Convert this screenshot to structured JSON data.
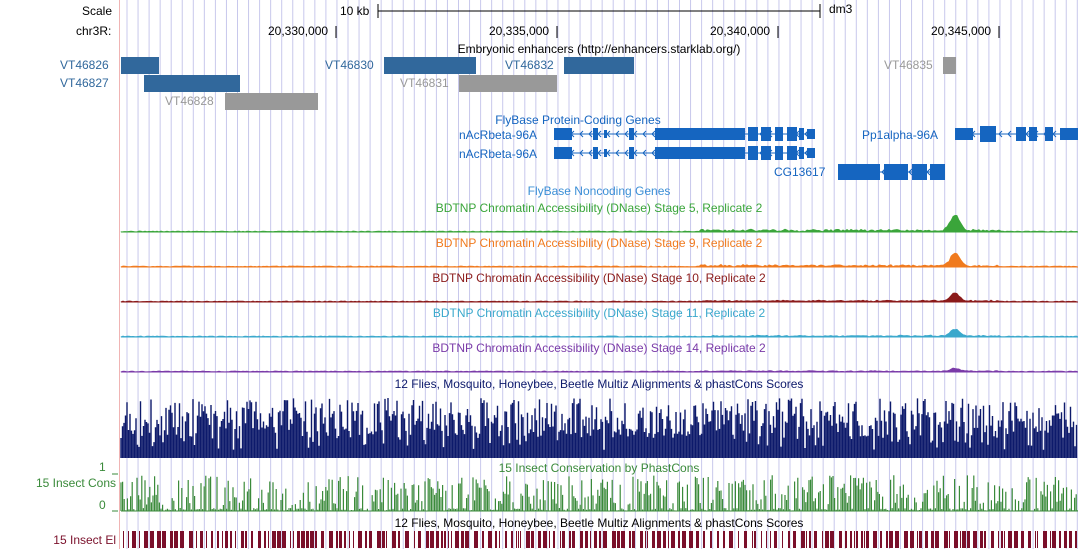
{
  "ruler": {
    "scale_label": "Scale",
    "chrom_label": "chr3R:",
    "scale_bar_text": "10 kb",
    "assembly": "dm3",
    "positions": [
      "20,330,000",
      "20,335,000",
      "20,340,000",
      "20,345,000"
    ]
  },
  "enhancers": {
    "title": "Embryonic enhancers (http://enhancers.starklab.org/)",
    "items": [
      {
        "id": "VT46826",
        "style": "blue"
      },
      {
        "id": "VT46827",
        "style": "blue"
      },
      {
        "id": "VT46828",
        "style": "gray"
      },
      {
        "id": "VT46830",
        "style": "blue"
      },
      {
        "id": "VT46831",
        "style": "gray"
      },
      {
        "id": "VT46832",
        "style": "blue"
      },
      {
        "id": "VT46835",
        "style": "gray"
      }
    ]
  },
  "coding_genes": {
    "title": "FlyBase Protein-Coding Genes",
    "genes": [
      "nAcRbeta-96A",
      "nAcRbeta-96A",
      "CG13617",
      "Pp1alpha-96A"
    ]
  },
  "noncoding_genes": {
    "title": "FlyBase Noncoding Genes"
  },
  "dnase_tracks": [
    {
      "title": "BDTNP Chromatin Accessibility (DNase) Stage 5, Replicate 2",
      "color": "#3aa53a"
    },
    {
      "title": "BDTNP Chromatin Accessibility (DNase) Stage 9, Replicate 2",
      "color": "#f07a1e"
    },
    {
      "title": "BDTNP Chromatin Accessibility (DNase) Stage 10, Replicate 2",
      "color": "#8b1a1a"
    },
    {
      "title": "BDTNP Chromatin Accessibility (DNase) Stage 11, Replicate 2",
      "color": "#3aa8cc"
    },
    {
      "title": "BDTNP Chromatin Accessibility (DNase) Stage 14, Replicate 2",
      "color": "#7a3aa8"
    }
  ],
  "multiz": {
    "title": "12 Flies, Mosquito, Honeybee, Beetle Multiz Alignments & phastCons Scores",
    "color": "#0d1a6b"
  },
  "conservation": {
    "side_label": "15 Insect Cons",
    "title": "15 Insect Conservation by PhastCons",
    "y_max_label": "1",
    "y_min_label": "0",
    "color": "#3a8a3a"
  },
  "elements": {
    "side_label": "15 Insect El",
    "title": "12 Flies, Mosquito, Honeybee, Beetle Multiz Alignments & phastCons Scores",
    "color": "#7a0f2a"
  },
  "colors": {
    "enhancer_blue": "#31689c",
    "enhancer_gray": "#999999",
    "gene_blue": "#1565c0",
    "grid_line": "#c8c8ec",
    "left_edge": "#f0b4b4"
  }
}
